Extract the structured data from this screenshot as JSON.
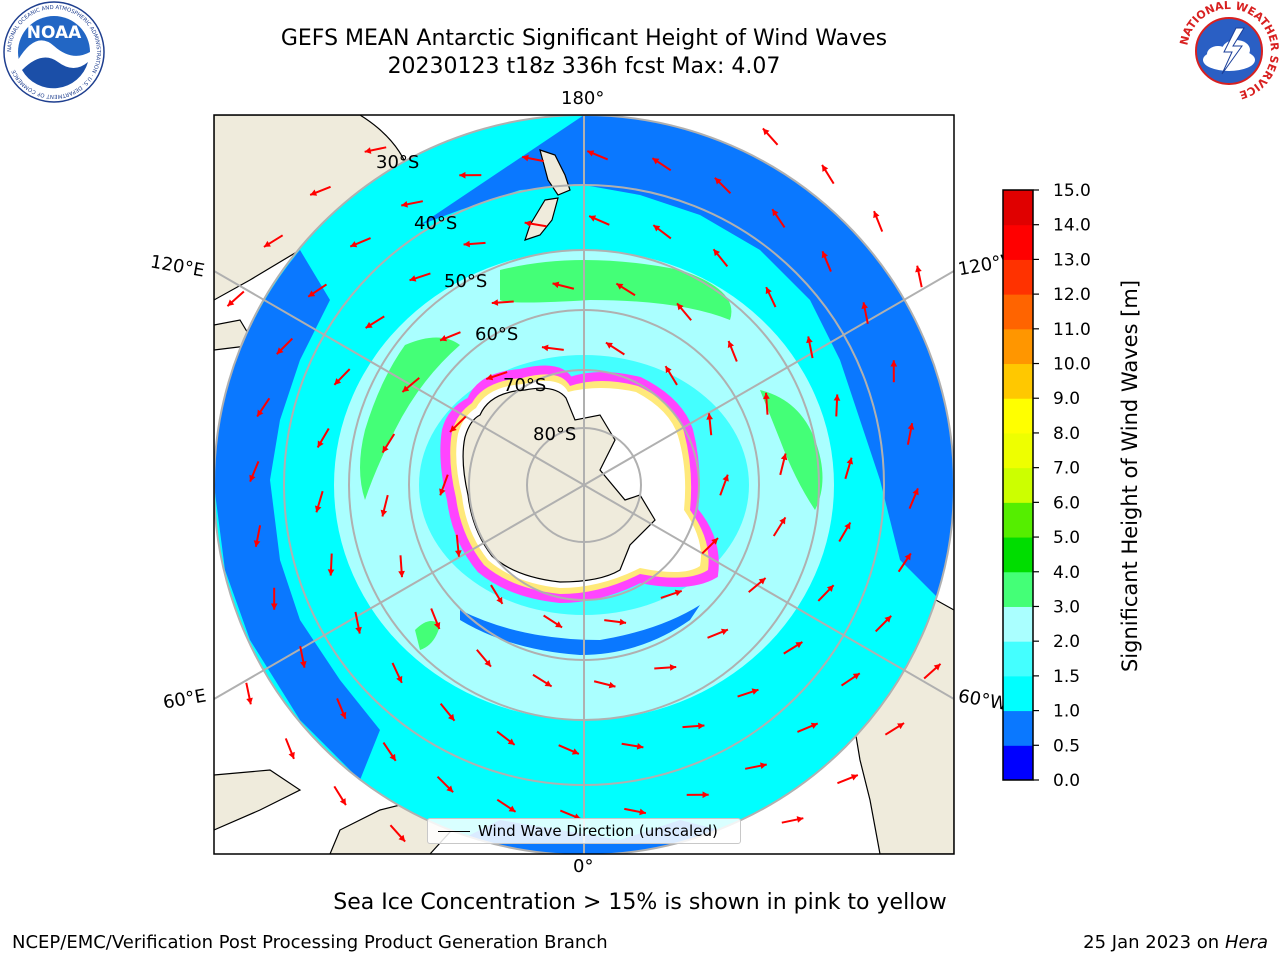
{
  "header": {
    "title": "GEFS MEAN Antarctic Significant Height of Wind Waves",
    "subtitle": "20230123 t18z 336h fcst   Max: 4.07"
  },
  "logos": {
    "noaa": {
      "text": "NOAA",
      "ring_text": "NATIONAL OCEANIC AND ATMOSPHERIC ADMINISTRATION · U.S. DEPARTMENT OF COMMERCE",
      "icon": "noaa-logo"
    },
    "nws": {
      "ring_text": "NATIONAL WEATHER SERVICE",
      "icon": "nws-logo"
    }
  },
  "map": {
    "projection": "south-polar-stereographic",
    "longitude_labels": {
      "top": "180°",
      "bottom": "0°",
      "upper_left": "120°E",
      "upper_right": "120°W",
      "lower_left": "60°E",
      "lower_right": "60°W"
    },
    "latitude_labels": [
      "30°S",
      "40°S",
      "50°S",
      "60°S",
      "70°S",
      "80°S"
    ],
    "colors": {
      "land": "#efebdc",
      "ice": "#ffffff",
      "sea_ice_edge": [
        "#ff44ff",
        "#ffe97a"
      ],
      "grid": "#b0b0b0",
      "arrow": "#ff0000"
    }
  },
  "chart_data": {
    "type": "heatmap",
    "title": "GEFS MEAN Antarctic Significant Height of Wind Waves",
    "colorbar_label": "Significant Height of Wind Waves [m]",
    "colorbar_ticks": [
      "0.0",
      "0.5",
      "1.0",
      "1.5",
      "2.0",
      "3.0",
      "4.0",
      "5.0",
      "6.0",
      "7.0",
      "8.0",
      "9.0",
      "10.0",
      "11.0",
      "12.0",
      "13.0",
      "14.0",
      "15.0"
    ],
    "levels": [
      0.0,
      0.5,
      1.0,
      1.5,
      2.0,
      3.0,
      4.0,
      5.0,
      6.0,
      7.0,
      8.0,
      9.0,
      10.0,
      11.0,
      12.0,
      13.0,
      14.0,
      15.0
    ],
    "colors": [
      "#0000ff",
      "#0a78ff",
      "#00ffff",
      "#44ffff",
      "#aaffff",
      "#44ff77",
      "#00dd00",
      "#55ee00",
      "#ccff00",
      "#eeff00",
      "#ffff00",
      "#ffc800",
      "#ff9600",
      "#ff6400",
      "#ff3200",
      "#ff0000",
      "#e00000"
    ],
    "max_value": 4.07,
    "legend": "Wind Wave Direction (unscaled)"
  },
  "caption": "Sea Ice Concentration > 15% is shown in pink to yellow",
  "footer": {
    "left": "NCEP/EMC/Verification Post Processing Product Generation Branch",
    "right_date": "25 Jan 2023 on ",
    "right_host": "Hera"
  }
}
